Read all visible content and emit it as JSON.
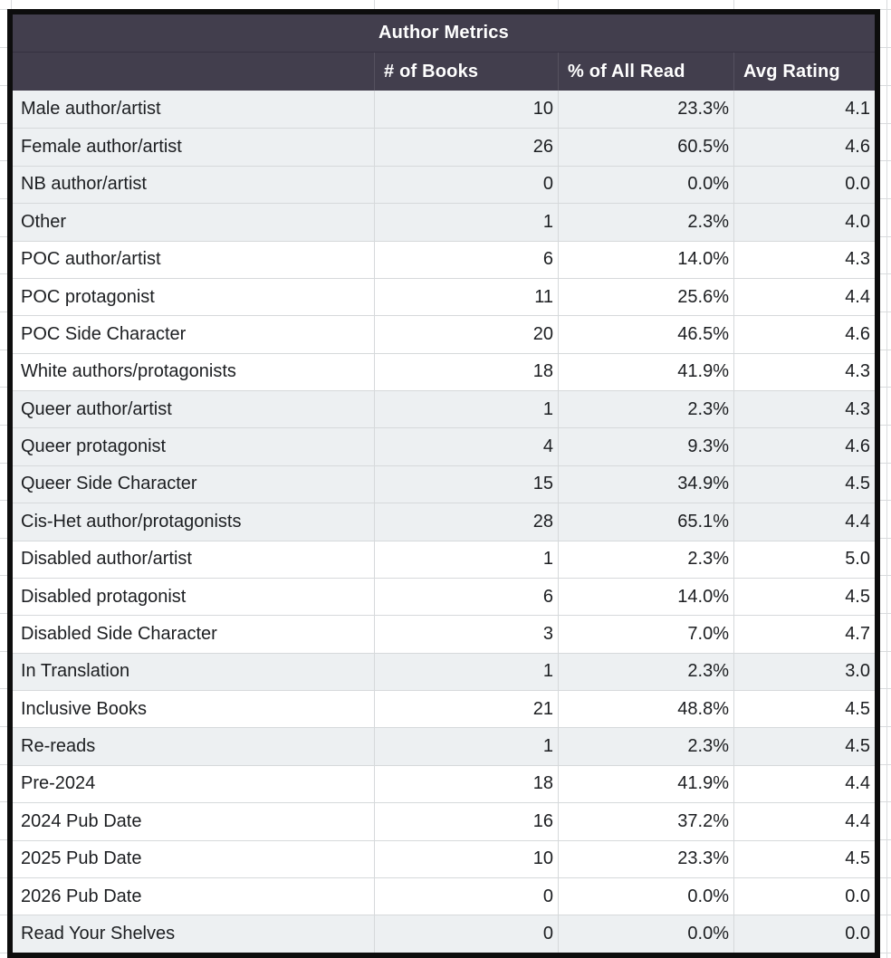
{
  "table": {
    "title": "Author Metrics",
    "columns": [
      "",
      "# of Books",
      "% of All Read",
      "Avg Rating"
    ],
    "rows": [
      {
        "label": "Male author/artist",
        "books": "10",
        "pct": "23.3%",
        "rating": "4.1",
        "shaded": true
      },
      {
        "label": "Female author/artist",
        "books": "26",
        "pct": "60.5%",
        "rating": "4.6",
        "shaded": true
      },
      {
        "label": "NB author/artist",
        "books": "0",
        "pct": "0.0%",
        "rating": "0.0",
        "shaded": true
      },
      {
        "label": "Other",
        "books": "1",
        "pct": "2.3%",
        "rating": "4.0",
        "shaded": true
      },
      {
        "label": "POC author/artist",
        "books": "6",
        "pct": "14.0%",
        "rating": "4.3",
        "shaded": false
      },
      {
        "label": "POC protagonist",
        "books": "11",
        "pct": "25.6%",
        "rating": "4.4",
        "shaded": false
      },
      {
        "label": "POC Side Character",
        "books": "20",
        "pct": "46.5%",
        "rating": "4.6",
        "shaded": false
      },
      {
        "label": "White authors/protagonists",
        "books": "18",
        "pct": "41.9%",
        "rating": "4.3",
        "shaded": false
      },
      {
        "label": "Queer author/artist",
        "books": "1",
        "pct": "2.3%",
        "rating": "4.3",
        "shaded": true
      },
      {
        "label": "Queer protagonist",
        "books": "4",
        "pct": "9.3%",
        "rating": "4.6",
        "shaded": true
      },
      {
        "label": "Queer Side Character",
        "books": "15",
        "pct": "34.9%",
        "rating": "4.5",
        "shaded": true
      },
      {
        "label": "Cis-Het author/protagonists",
        "books": "28",
        "pct": "65.1%",
        "rating": "4.4",
        "shaded": true
      },
      {
        "label": "Disabled author/artist",
        "books": "1",
        "pct": "2.3%",
        "rating": "5.0",
        "shaded": false
      },
      {
        "label": "Disabled protagonist",
        "books": "6",
        "pct": "14.0%",
        "rating": "4.5",
        "shaded": false
      },
      {
        "label": "Disabled Side Character",
        "books": "3",
        "pct": "7.0%",
        "rating": "4.7",
        "shaded": false
      },
      {
        "label": "In Translation",
        "books": "1",
        "pct": "2.3%",
        "rating": "3.0",
        "shaded": true
      },
      {
        "label": "Inclusive Books",
        "books": "21",
        "pct": "48.8%",
        "rating": "4.5",
        "shaded": false
      },
      {
        "label": "Re-reads",
        "books": "1",
        "pct": "2.3%",
        "rating": "4.5",
        "shaded": true
      },
      {
        "label": "Pre-2024",
        "books": "18",
        "pct": "41.9%",
        "rating": "4.4",
        "shaded": false
      },
      {
        "label": "2024 Pub Date",
        "books": "16",
        "pct": "37.2%",
        "rating": "4.4",
        "shaded": false
      },
      {
        "label": "2025 Pub Date",
        "books": "10",
        "pct": "23.3%",
        "rating": "4.5",
        "shaded": false
      },
      {
        "label": "2026 Pub Date",
        "books": "0",
        "pct": "0.0%",
        "rating": "0.0",
        "shaded": false
      },
      {
        "label": "Read Your Shelves",
        "books": "0",
        "pct": "0.0%",
        "rating": "0.0",
        "shaded": true
      }
    ],
    "colors": {
      "header_bg": "#423e4d",
      "header_text": "#ffffff",
      "shaded_row_bg": "#edf0f2",
      "row_text": "#1c1e21",
      "outer_border": "#0d0d0d",
      "gridline": "#d6d9db"
    }
  }
}
